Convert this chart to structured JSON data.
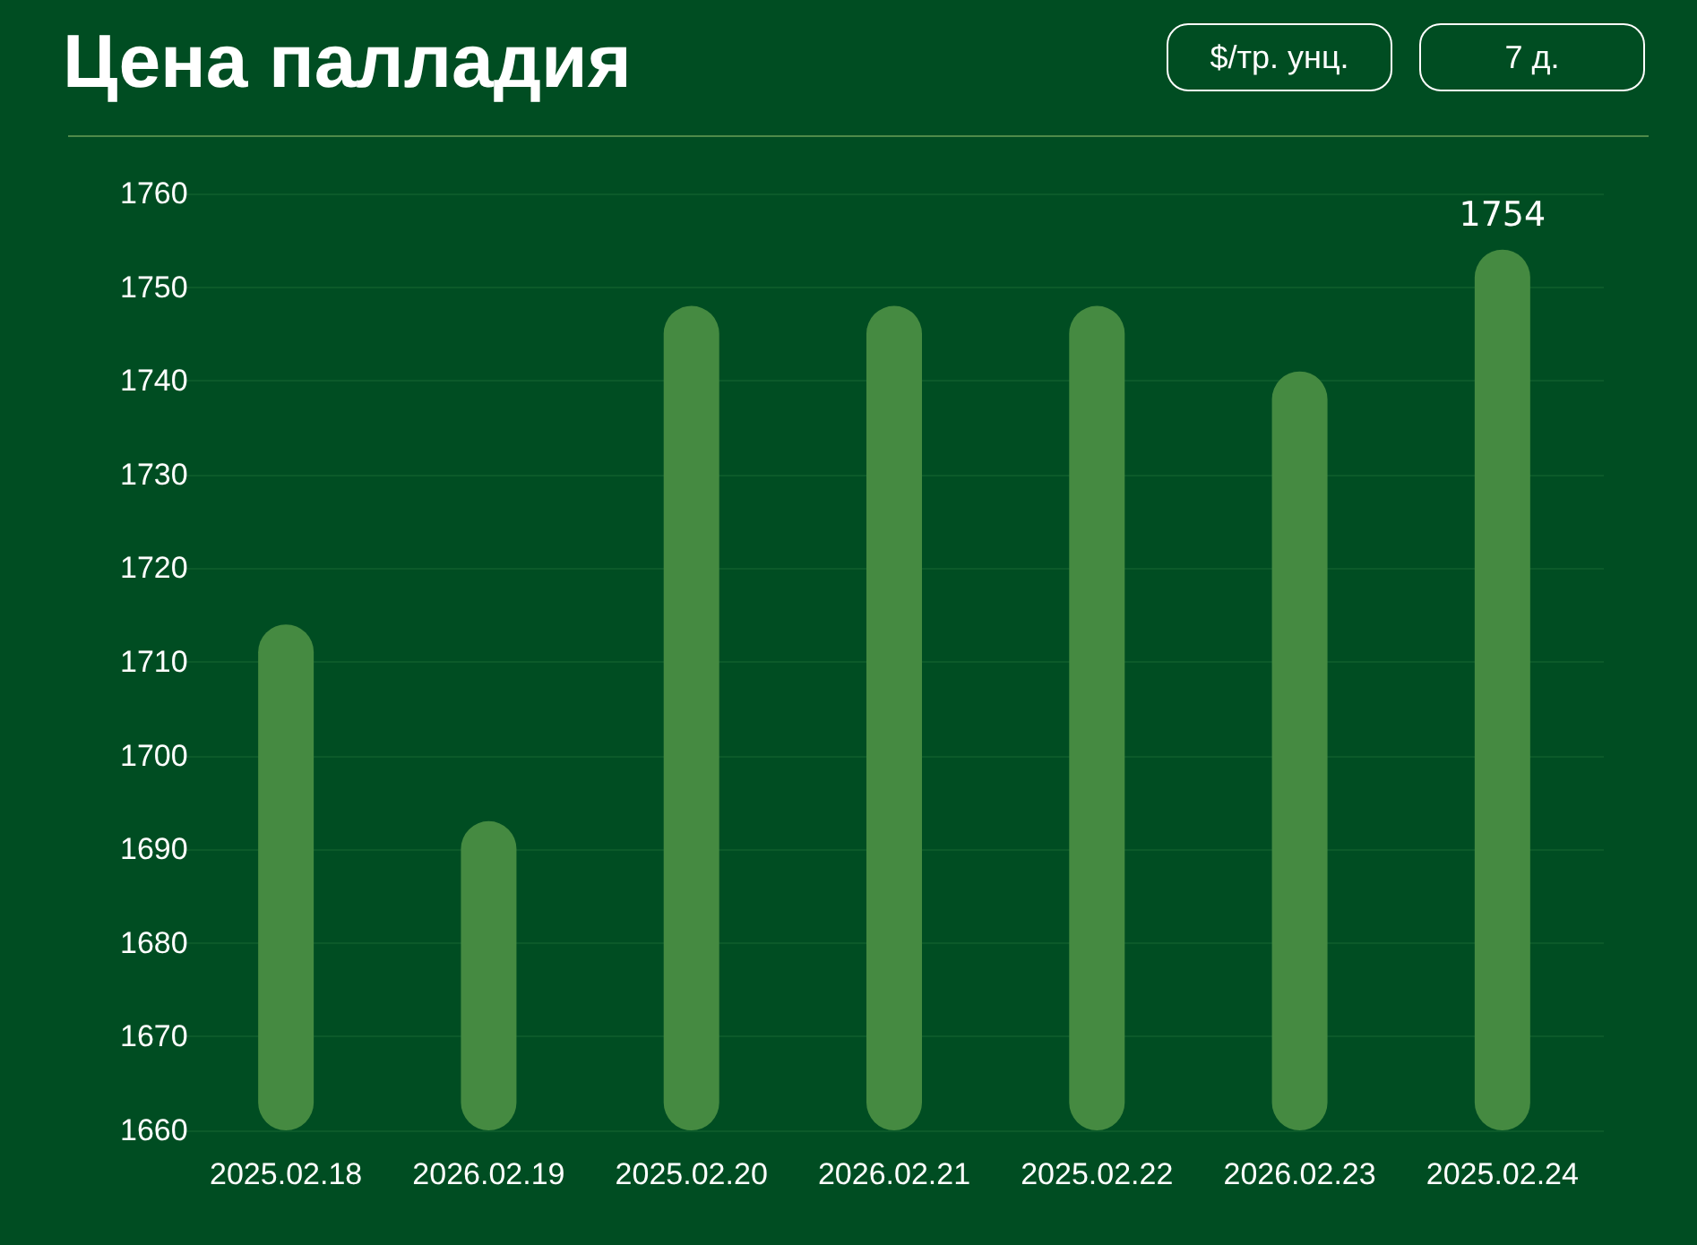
{
  "chart_data": {
    "type": "bar",
    "title": "Цена палладия",
    "annotations": [
      "$/тр. унц.",
      "7 д."
    ],
    "categories": [
      "2025.02.18",
      "2026.02.19",
      "2025.02.20",
      "2026.02.21",
      "2025.02.22",
      "2026.02.23",
      "2025.02.24"
    ],
    "values": [
      1714,
      1693,
      1748,
      1748,
      1748,
      1741,
      1754
    ],
    "value_labels": [
      null,
      null,
      null,
      null,
      null,
      null,
      "1754"
    ],
    "color": "#458a41",
    "ylim": [
      1660,
      1760
    ],
    "yticks": [
      1660,
      1670,
      1680,
      1690,
      1700,
      1710,
      1720,
      1730,
      1740,
      1750,
      1760
    ],
    "grid": "y"
  }
}
